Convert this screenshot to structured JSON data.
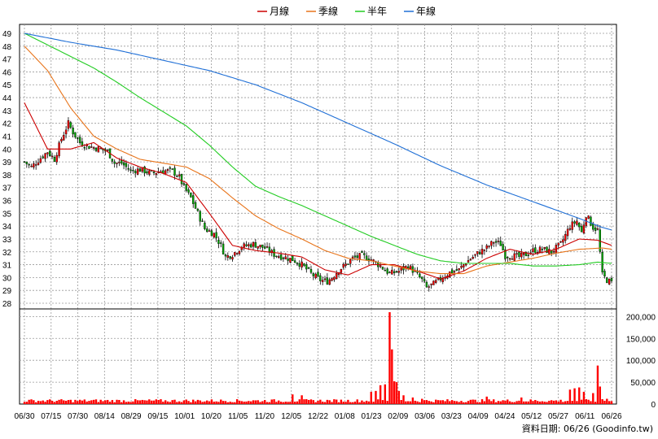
{
  "legend": [
    {
      "label": "月線",
      "color": "#cc0000"
    },
    {
      "label": "季線",
      "color": "#e8741a"
    },
    {
      "label": "半年",
      "color": "#22cc22"
    },
    {
      "label": "年線",
      "color": "#1f6fd6"
    }
  ],
  "footer": "資料日期: 06/26 (Goodinfo.tw)",
  "chart_data": [
    {
      "type": "candlestick",
      "panel": "price",
      "ylim": [
        28,
        49.5
      ],
      "yticks": [
        28,
        29,
        30,
        31,
        32,
        33,
        34,
        35,
        36,
        37,
        38,
        39,
        40,
        41,
        42,
        43,
        44,
        45,
        46,
        47,
        48,
        49
      ],
      "x_labels": [
        "06/30",
        "07/15",
        "07/30",
        "08/14",
        "08/29",
        "09/15",
        "10/01",
        "10/20",
        "11/05",
        "11/20",
        "12/05",
        "12/22",
        "01/08",
        "01/23",
        "02/09",
        "03/06",
        "03/23",
        "04/09",
        "04/24",
        "05/12",
        "05/27",
        "06/11",
        "06/26"
      ],
      "grid": true,
      "legend_placement": "top-center",
      "colors": {
        "up": "#ff0000",
        "down": "#00aa00",
        "wick": "#000000"
      },
      "close_keyframes": [
        [
          0,
          39
        ],
        [
          3,
          38.6
        ],
        [
          7,
          39.3
        ],
        [
          10,
          39.8
        ],
        [
          13,
          39.2
        ],
        [
          16,
          40.8
        ],
        [
          19,
          42
        ],
        [
          21,
          41.3
        ],
        [
          24,
          40.5
        ],
        [
          28,
          40.2
        ],
        [
          33,
          40
        ],
        [
          36,
          39.8
        ],
        [
          39,
          38.9
        ],
        [
          42,
          38.9
        ],
        [
          46,
          38.3
        ],
        [
          50,
          38.4
        ],
        [
          55,
          38.1
        ],
        [
          59,
          38.3
        ],
        [
          64,
          38.3
        ],
        [
          67,
          37.8
        ],
        [
          69,
          37
        ],
        [
          72,
          36.2
        ],
        [
          75,
          35
        ],
        [
          78,
          33.8
        ],
        [
          82,
          33.4
        ],
        [
          85,
          32.5
        ],
        [
          87,
          31.6
        ],
        [
          90,
          31.8
        ],
        [
          94,
          32.4
        ],
        [
          99,
          32.6
        ],
        [
          104,
          32.3
        ],
        [
          108,
          31.8
        ],
        [
          112,
          31.6
        ],
        [
          116,
          31.4
        ],
        [
          120,
          31
        ],
        [
          124,
          30.3
        ],
        [
          128,
          29.8
        ],
        [
          131,
          29.7
        ],
        [
          133,
          30
        ],
        [
          136,
          30.6
        ],
        [
          139,
          31
        ],
        [
          142,
          31.5
        ],
        [
          146,
          31.7
        ],
        [
          150,
          31.4
        ],
        [
          154,
          30.9
        ],
        [
          158,
          30.3
        ],
        [
          162,
          30.5
        ],
        [
          166,
          30.9
        ],
        [
          169,
          30.4
        ],
        [
          172,
          29.8
        ],
        [
          174,
          29.2
        ],
        [
          177,
          29.5
        ],
        [
          180,
          29.9
        ],
        [
          184,
          30.4
        ],
        [
          188,
          30.6
        ],
        [
          191,
          31.2
        ],
        [
          194,
          31.6
        ],
        [
          197,
          32
        ],
        [
          200,
          32.3
        ],
        [
          203,
          32.8
        ],
        [
          206,
          32.6
        ],
        [
          208,
          31.7
        ],
        [
          211,
          31.7
        ],
        [
          214,
          31.6
        ],
        [
          217,
          31.8
        ],
        [
          220,
          32.1
        ],
        [
          224,
          32.2
        ],
        [
          228,
          32
        ],
        [
          232,
          32.6
        ],
        [
          236,
          34
        ],
        [
          239,
          34.4
        ],
        [
          241,
          33.5
        ],
        [
          243,
          34.9
        ],
        [
          246,
          33.9
        ],
        [
          248,
          33.7
        ],
        [
          250,
          30.2
        ],
        [
          252,
          29.8
        ],
        [
          254,
          29.6
        ]
      ],
      "moving_averages": {
        "月線": [
          [
            0,
            43.6
          ],
          [
            10,
            40
          ],
          [
            20,
            40
          ],
          [
            30,
            40.5
          ],
          [
            40,
            39.3
          ],
          [
            50,
            38.6
          ],
          [
            60,
            38.1
          ],
          [
            70,
            37.4
          ],
          [
            80,
            35
          ],
          [
            90,
            32.5
          ],
          [
            100,
            32.1
          ],
          [
            110,
            31.9
          ],
          [
            120,
            31.6
          ],
          [
            130,
            30.6
          ],
          [
            140,
            30.2
          ],
          [
            150,
            31
          ],
          [
            160,
            31
          ],
          [
            170,
            30.5
          ],
          [
            180,
            29.9
          ],
          [
            190,
            30.5
          ],
          [
            200,
            31.5
          ],
          [
            210,
            32.2
          ],
          [
            220,
            31.8
          ],
          [
            230,
            32.2
          ],
          [
            240,
            33
          ],
          [
            248,
            32.9
          ],
          [
            254,
            32.5
          ]
        ],
        "季線": [
          [
            0,
            48
          ],
          [
            10,
            46.1
          ],
          [
            20,
            43.2
          ],
          [
            30,
            41
          ],
          [
            40,
            40
          ],
          [
            50,
            39.2
          ],
          [
            60,
            38.9
          ],
          [
            70,
            38.6
          ],
          [
            80,
            37.7
          ],
          [
            90,
            36.2
          ],
          [
            100,
            34.8
          ],
          [
            110,
            33.8
          ],
          [
            120,
            33
          ],
          [
            130,
            32.1
          ],
          [
            140,
            31.5
          ],
          [
            150,
            31.3
          ],
          [
            160,
            30.9
          ],
          [
            170,
            30.5
          ],
          [
            180,
            30.3
          ],
          [
            190,
            30.3
          ],
          [
            200,
            30.9
          ],
          [
            210,
            31.2
          ],
          [
            220,
            31.5
          ],
          [
            230,
            31.9
          ],
          [
            240,
            32.2
          ],
          [
            250,
            32.3
          ],
          [
            254,
            32.2
          ]
        ],
        "半年": [
          [
            0,
            49
          ],
          [
            10,
            48.1
          ],
          [
            20,
            47.2
          ],
          [
            30,
            46.3
          ],
          [
            40,
            45.2
          ],
          [
            50,
            44
          ],
          [
            60,
            42.9
          ],
          [
            70,
            41.8
          ],
          [
            80,
            40.3
          ],
          [
            90,
            38.6
          ],
          [
            100,
            37.1
          ],
          [
            110,
            36.3
          ],
          [
            120,
            35.6
          ],
          [
            130,
            34.8
          ],
          [
            140,
            34
          ],
          [
            150,
            33.2
          ],
          [
            160,
            32.5
          ],
          [
            170,
            31.8
          ],
          [
            180,
            31.3
          ],
          [
            190,
            31.1
          ],
          [
            200,
            31.1
          ],
          [
            210,
            31.1
          ],
          [
            220,
            30.9
          ],
          [
            230,
            30.9
          ],
          [
            240,
            31
          ],
          [
            248,
            31.2
          ],
          [
            254,
            31.1
          ]
        ],
        "年線": [
          [
            0,
            49
          ],
          [
            20,
            48.3
          ],
          [
            40,
            47.7
          ],
          [
            60,
            46.9
          ],
          [
            80,
            46.1
          ],
          [
            100,
            45
          ],
          [
            120,
            43.6
          ],
          [
            140,
            42
          ],
          [
            160,
            40.4
          ],
          [
            180,
            38.7
          ],
          [
            200,
            37.2
          ],
          [
            220,
            35.9
          ],
          [
            240,
            34.6
          ],
          [
            250,
            33.9
          ],
          [
            254,
            33.7
          ]
        ]
      }
    },
    {
      "type": "bar",
      "panel": "volume",
      "ylim": [
        0,
        210000
      ],
      "yticks": [
        0,
        50000,
        100000,
        150000,
        200000
      ],
      "ytick_labels": [
        "0",
        "50,000",
        "100,000",
        "150,000",
        "200,000"
      ],
      "color": "#ff0000",
      "base_volume": 8000,
      "spikes": [
        [
          116,
          22000
        ],
        [
          120,
          20000
        ],
        [
          150,
          28000
        ],
        [
          152,
          30000
        ],
        [
          154,
          43000
        ],
        [
          156,
          45000
        ],
        [
          158,
          210000
        ],
        [
          159,
          125000
        ],
        [
          160,
          52000
        ],
        [
          161,
          50000
        ],
        [
          162,
          30000
        ],
        [
          164,
          20000
        ],
        [
          168,
          15000
        ],
        [
          172,
          12000
        ],
        [
          200,
          17000
        ],
        [
          215,
          15000
        ],
        [
          236,
          33000
        ],
        [
          238,
          36000
        ],
        [
          240,
          38000
        ],
        [
          242,
          28000
        ],
        [
          246,
          25000
        ],
        [
          248,
          88000
        ],
        [
          249,
          40000
        ],
        [
          252,
          12000
        ]
      ]
    }
  ]
}
